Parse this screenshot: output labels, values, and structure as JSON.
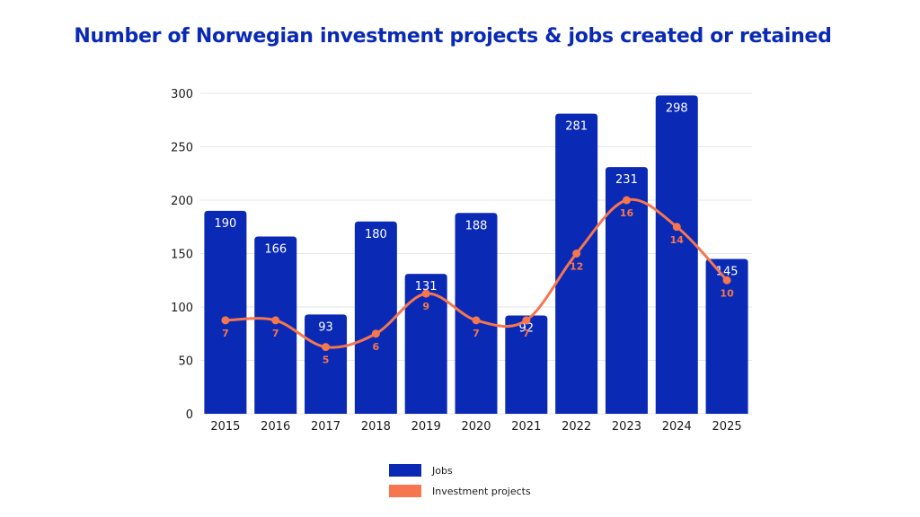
{
  "chart_data": {
    "type": "bar",
    "title": "Number of Norwegian investment projects & jobs created or retained",
    "categories": [
      "2015",
      "2016",
      "2017",
      "2018",
      "2019",
      "2020",
      "2021",
      "2022",
      "2023",
      "2024",
      "2025"
    ],
    "series": [
      {
        "name": "Jobs",
        "type": "bar",
        "color": "#0a2ab5",
        "values": [
          190,
          166,
          93,
          180,
          131,
          188,
          92,
          281,
          231,
          298,
          145
        ]
      },
      {
        "name": "Investment projects",
        "type": "line",
        "smooth": true,
        "color": "#f5764f",
        "values": [
          7,
          7,
          5,
          6,
          9,
          7,
          7,
          12,
          16,
          14,
          10
        ]
      }
    ],
    "ylim": [
      0,
      300
    ],
    "yticks": [
      0,
      50,
      100,
      150,
      200,
      250,
      300
    ],
    "secondary_ylim": [
      0,
      24
    ],
    "grid": true,
    "legend_position": "bottom-center"
  }
}
